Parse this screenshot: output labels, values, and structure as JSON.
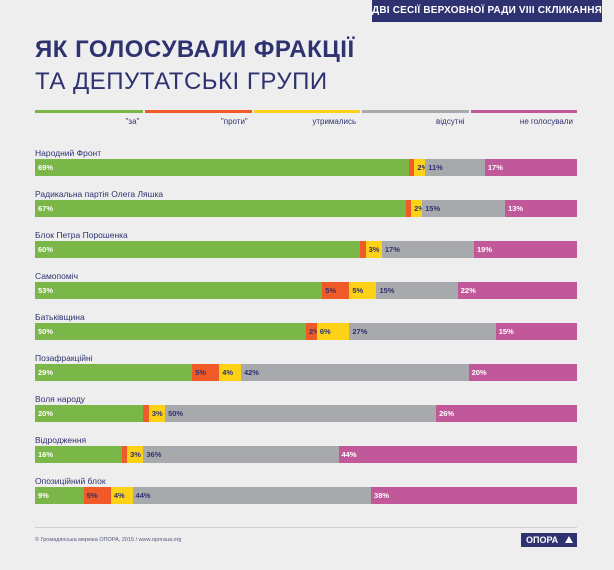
{
  "header": {
    "badge": "ДВІ СЕСІЇ ВЕРХОВНОЇ РАДИ VIII СКЛИКАННЯ",
    "title_line1": "ЯК ГОЛОСУВАЛИ ФРАКЦІЇ",
    "title_line2": "ТА ДЕПУТАТСЬКІ ГРУПИ"
  },
  "footer": {
    "credit": "© Громадянська мережа ОПОРА, 2015 / www.oporaua.org",
    "logo": "ОПОРА"
  },
  "chart_data": {
    "type": "bar",
    "orientation": "horizontal",
    "stacked": true,
    "unit": "%",
    "categories": [
      "Народний Фронт",
      "Радикальна партія Олега Ляшка",
      "Блок Петра Порошенка",
      "Самопоміч",
      "Батьківщина",
      "Позафракційні",
      "Воля народу",
      "Відродження",
      "Опозиційний блок"
    ],
    "series": [
      {
        "name": "\"за\"",
        "color": "#7ab648",
        "label_color": "#ffffff",
        "values": [
          69,
          67,
          60,
          53,
          50,
          29,
          20,
          16,
          9
        ],
        "labels": [
          "69%",
          "67%",
          "60%",
          "53%",
          "50%",
          "29%",
          "20%",
          "16%",
          "9%"
        ]
      },
      {
        "name": "\"проти\"",
        "color": "#f05a28",
        "label_color": "#2e3270",
        "values": [
          1,
          1,
          1,
          5,
          2,
          5,
          1,
          1,
          5
        ],
        "labels": [
          "",
          "",
          "",
          "5%",
          "2%",
          "5%",
          "",
          "",
          "5%"
        ]
      },
      {
        "name": "утримались",
        "color": "#fcd116",
        "label_color": "#2e3270",
        "values": [
          2,
          2,
          3,
          5,
          6,
          4,
          3,
          3,
          4
        ],
        "labels": [
          "2%",
          "2%",
          "3%",
          "5%",
          "6%",
          "4%",
          "3%",
          "3%",
          "4%"
        ]
      },
      {
        "name": "відсутні",
        "color": "#a7a9ac",
        "label_color": "#2e3270",
        "values": [
          11,
          15,
          17,
          15,
          27,
          42,
          50,
          36,
          44
        ],
        "labels": [
          "11%",
          "15%",
          "17%",
          "15%",
          "27%",
          "42%",
          "50%",
          "36%",
          "44%"
        ]
      },
      {
        "name": "не голосували",
        "color": "#c0589a",
        "label_color": "#ffffff",
        "values": [
          17,
          13,
          19,
          22,
          15,
          20,
          26,
          44,
          38
        ],
        "labels": [
          "17%",
          "13%",
          "19%",
          "22%",
          "15%",
          "20%",
          "26%",
          "44%",
          "38%"
        ]
      }
    ],
    "xlim": [
      0,
      100
    ],
    "legend": "top",
    "grid": false
  }
}
